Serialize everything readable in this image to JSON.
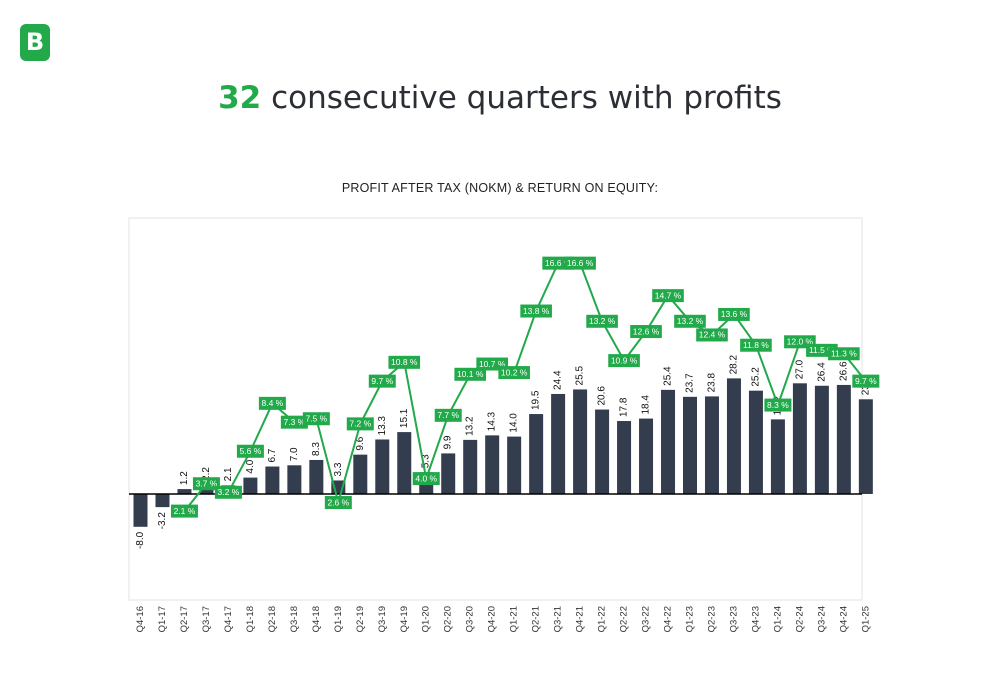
{
  "brand": {
    "logo_text": "B",
    "accent": "#21a94a",
    "bar_color": "#333d4e"
  },
  "headline": {
    "number": "32",
    "text": " consecutive quarters with profits"
  },
  "chart_data": {
    "type": "bar",
    "title": "PROFIT AFTER TAX (NOKM) & RETURN ON EQUITY:",
    "categories": [
      "Q4-16",
      "Q1-17",
      "Q2-17",
      "Q3-17",
      "Q4-17",
      "Q1-18",
      "Q2-18",
      "Q3-18",
      "Q4-18",
      "Q1-19",
      "Q2-19",
      "Q3-19",
      "Q4-19",
      "Q1-20",
      "Q2-20",
      "Q3-20",
      "Q4-20",
      "Q1-21",
      "Q2-21",
      "Q3-21",
      "Q4-21",
      "Q1-22",
      "Q2-22",
      "Q3-22",
      "Q4-22",
      "Q1-23",
      "Q2-23",
      "Q3-23",
      "Q4-23",
      "Q1-24",
      "Q2-24",
      "Q3-24",
      "Q4-24",
      "Q1-25"
    ],
    "series": [
      {
        "type": "bar",
        "values": [
          -8.0,
          -3.2,
          1.2,
          2.2,
          2.1,
          4.0,
          6.7,
          7.0,
          8.3,
          3.3,
          9.6,
          13.3,
          15.1,
          5.3,
          9.9,
          13.2,
          14.3,
          14.0,
          19.5,
          24.4,
          25.5,
          20.6,
          17.8,
          18.4,
          25.4,
          23.7,
          23.8,
          28.2,
          25.2,
          18.2,
          27.0,
          26.4,
          26.6,
          23.1
        ],
        "labels": [
          "-8.0",
          "-3.2",
          "1.2",
          "2.2",
          "2.1",
          "4.0",
          "6.7",
          "7.0",
          "8.3",
          "3.3",
          "9.6",
          "13.3",
          "15.1",
          "5.3",
          "9.9",
          "13.2",
          "14.3",
          "14.0",
          "19.5",
          "24.4",
          "25.5",
          "20.6",
          "17.8",
          "18.4",
          "25.4",
          "23.7",
          "23.8",
          "28.2",
          "25.2",
          "18.2",
          "27.0",
          "26.4",
          "26.6",
          "23.1"
        ]
      },
      {
        "type": "line",
        "values": [
          null,
          null,
          2.1,
          3.7,
          3.2,
          5.6,
          8.4,
          7.3,
          7.5,
          2.6,
          7.2,
          9.7,
          10.8,
          4.0,
          7.7,
          10.1,
          10.7,
          10.2,
          13.8,
          16.6,
          16.6,
          13.2,
          10.9,
          12.6,
          14.7,
          13.2,
          12.4,
          13.6,
          11.8,
          8.3,
          12.0,
          11.5,
          11.3,
          9.7
        ],
        "labels": [
          "",
          "",
          "2.1 %",
          "3.7 %",
          "3.2 %",
          "5.6 %",
          "8.4 %",
          "7.3 %",
          "7.5 %",
          "2.6 %",
          "7.2 %",
          "9.7 %",
          "10.8 %",
          "4.0 %",
          "7.7 %",
          "10.1 %",
          "10.7 %",
          "10.2 %",
          "13.8 %",
          "16.6 %",
          "16.6 %",
          "13.2 %",
          "10.9 %",
          "12.6 %",
          "14.7 %",
          "13.2 %",
          "12.4 %",
          "13.6 %",
          "11.8 %",
          "8.3 %",
          "12.0 %",
          "11.5 %",
          "11.3 %",
          "9.7 %"
        ]
      }
    ],
    "grid": false,
    "legend": "none"
  }
}
